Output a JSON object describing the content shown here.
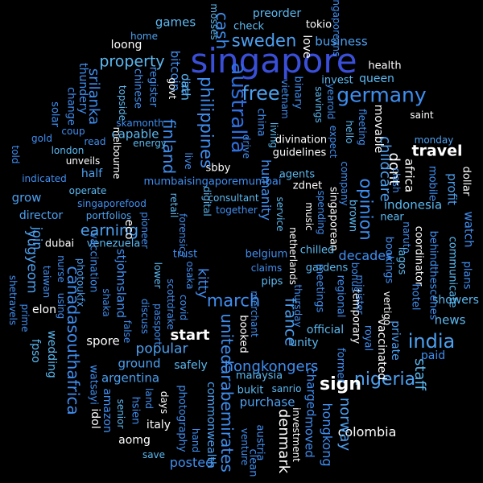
{
  "colors": {
    "background": "#000000",
    "palette": [
      "#3a4fd8",
      "#3f8ef0",
      "#4ca0f0",
      "#5bb8f0",
      "#68c6f0",
      "#2f6fe0",
      "#ffffff"
    ]
  },
  "words": [
    {
      "text": "singapore",
      "color": "#3a4fd8"
    },
    {
      "text": "germany",
      "color": "#3f8ef0"
    },
    {
      "text": "australia",
      "color": "#2f6fe0"
    },
    {
      "text": "philippines",
      "color": "#3f8ef0"
    },
    {
      "text": "unitedarabemirates",
      "color": "#3f8ef0"
    },
    {
      "text": "canadasouthafrica",
      "color": "#3f8ef0"
    },
    {
      "text": "india",
      "color": "#4ca0f0"
    },
    {
      "text": "nigeria",
      "color": "#4ca0f0"
    },
    {
      "text": "travel",
      "color": "#ffffff"
    },
    {
      "text": "start",
      "color": "#ffffff"
    },
    {
      "text": "sign",
      "color": "#ffffff"
    },
    {
      "text": "sweden",
      "color": "#4ca0f0"
    },
    {
      "text": "free",
      "color": "#4ca0f0"
    },
    {
      "text": "property",
      "color": "#5bb8f0"
    },
    {
      "text": "earning",
      "color": "#4ca0f0"
    },
    {
      "text": "march",
      "color": "#3f8ef0"
    },
    {
      "text": "france",
      "color": "#4ca0f0"
    },
    {
      "text": "finland",
      "color": "#3f8ef0"
    },
    {
      "text": "opinion",
      "color": "#3f8ef0"
    },
    {
      "text": "srilanka",
      "color": "#3f8ef0"
    },
    {
      "text": "hongkongers",
      "color": "#3f8ef0"
    },
    {
      "text": "denmark",
      "color": "#ffffff"
    },
    {
      "text": "norway",
      "color": "#4ca0f0"
    },
    {
      "text": "hongkong",
      "color": "#3f8ef0"
    },
    {
      "text": "cash",
      "color": "#3f8ef0"
    },
    {
      "text": "business",
      "color": "#4ca0f0"
    },
    {
      "text": "bitcoin",
      "color": "#3f8ef0"
    },
    {
      "text": "games",
      "color": "#5bb8f0"
    },
    {
      "text": "loong",
      "color": "#ffffff"
    },
    {
      "text": "preorder",
      "color": "#5bb8f0"
    },
    {
      "text": "tokio",
      "color": "#ffffff"
    },
    {
      "text": "check",
      "color": "#5bb8f0"
    },
    {
      "text": "love",
      "color": "#ffffff"
    },
    {
      "text": "health",
      "color": "#ffffff"
    },
    {
      "text": "queen",
      "color": "#5bb8f0"
    },
    {
      "text": "invest",
      "color": "#5bb8f0"
    },
    {
      "text": "mosses",
      "color": "#5bb8f0"
    },
    {
      "text": "home",
      "color": "#4ca0f0"
    },
    {
      "text": "oath",
      "color": "#5bb8f0"
    },
    {
      "text": "saint",
      "color": "#ffffff"
    },
    {
      "text": "monday",
      "color": "#4ca0f0"
    },
    {
      "text": "childcare",
      "color": "#4ca0f0"
    },
    {
      "text": "movable",
      "color": "#ffffff"
    },
    {
      "text": "africa",
      "color": "#ffffff"
    },
    {
      "text": "dollar",
      "color": "#ffffff"
    },
    {
      "text": "profit",
      "color": "#4ca0f0"
    },
    {
      "text": "mobile",
      "color": "#3f8ef0"
    },
    {
      "text": "dont",
      "color": "#ffffff"
    },
    {
      "text": "indonesia",
      "color": "#5bb8f0"
    },
    {
      "text": "watch",
      "color": "#3f8ef0"
    },
    {
      "text": "near",
      "color": "#5bb8f0"
    },
    {
      "text": "naruto",
      "color": "#3f8ef0"
    },
    {
      "text": "coordinator",
      "color": "#ffffff"
    },
    {
      "text": "lagos",
      "color": "#5bb8f0"
    },
    {
      "text": "bookings",
      "color": "#3f8ef0"
    },
    {
      "text": "behindthescenes",
      "color": "#3f8ef0"
    },
    {
      "text": "communicate",
      "color": "#5bb8f0"
    },
    {
      "text": "plans",
      "color": "#3f8ef0"
    },
    {
      "text": "spain",
      "color": "#4ca0f0"
    },
    {
      "text": "showers",
      "color": "#5bb8f0"
    },
    {
      "text": "news",
      "color": "#5bb8f0"
    },
    {
      "text": "paid",
      "color": "#3f8ef0"
    },
    {
      "text": "staff",
      "color": "#5bb8f0"
    },
    {
      "text": "colombia",
      "color": "#ffffff"
    },
    {
      "text": "private",
      "color": "#4ca0f0"
    },
    {
      "text": "vaccinated",
      "color": "#ffffff"
    },
    {
      "text": "temporary",
      "color": "#ffffff"
    },
    {
      "text": "royal",
      "color": "#3f8ef0"
    },
    {
      "text": "former",
      "color": "#3f8ef0"
    },
    {
      "text": "official",
      "color": "#5bb8f0"
    },
    {
      "text": "regional",
      "color": "#3f8ef0"
    },
    {
      "text": "minister",
      "color": "#3f8ef0"
    },
    {
      "text": "bonus",
      "color": "#3f8ef0"
    },
    {
      "text": "vertigo",
      "color": "#ffffff"
    },
    {
      "text": "hotel",
      "color": "#3f8ef0"
    },
    {
      "text": "unity",
      "color": "#5bb8f0"
    },
    {
      "text": "merchant",
      "color": "#3f8ef0"
    },
    {
      "text": "booked",
      "color": "#ffffff"
    },
    {
      "text": "charged",
      "color": "#3f8ef0"
    },
    {
      "text": "purchase",
      "color": "#4ca0f0"
    },
    {
      "text": "sanrio",
      "color": "#5bb8f0"
    },
    {
      "text": "malaysia",
      "color": "#5bb8f0"
    },
    {
      "text": "bukit",
      "color": "#5bb8f0"
    },
    {
      "text": "investment",
      "color": "#ffffff"
    },
    {
      "text": "moved",
      "color": "#3f8ef0"
    },
    {
      "text": "austria",
      "color": "#3f8ef0"
    },
    {
      "text": "venture",
      "color": "#3f8ef0"
    },
    {
      "text": "clean",
      "color": "#3f8ef0"
    },
    {
      "text": "commonwealth",
      "color": "#4ca0f0"
    },
    {
      "text": "posted",
      "color": "#3f8ef0"
    },
    {
      "text": "hand",
      "color": "#3f8ef0"
    },
    {
      "text": "italy",
      "color": "#ffffff"
    },
    {
      "text": "aomg",
      "color": "#ffffff"
    },
    {
      "text": "save",
      "color": "#5bb8f0"
    },
    {
      "text": "photography",
      "color": "#3f8ef0"
    },
    {
      "text": "days",
      "color": "#ffffff"
    },
    {
      "text": "hsien",
      "color": "#3f8ef0"
    },
    {
      "text": "land",
      "color": "#3f8ef0"
    },
    {
      "text": "senior",
      "color": "#5bb8f0"
    },
    {
      "text": "amazon",
      "color": "#3f8ef0"
    },
    {
      "text": "idol",
      "color": "#ffffff"
    },
    {
      "text": "watsayi",
      "color": "#3f8ef0"
    },
    {
      "text": "argentina",
      "color": "#4ca0f0"
    },
    {
      "text": "ground",
      "color": "#4ca0f0"
    },
    {
      "text": "safely",
      "color": "#5bb8f0"
    },
    {
      "text": "popular",
      "color": "#4ca0f0"
    },
    {
      "text": "spore",
      "color": "#ffffff"
    },
    {
      "text": "false",
      "color": "#3f8ef0"
    },
    {
      "text": "discuss",
      "color": "#3f8ef0"
    },
    {
      "text": "shaka",
      "color": "#3f8ef0"
    },
    {
      "text": "wedding",
      "color": "#5bb8f0"
    },
    {
      "text": "fpso",
      "color": "#5bb8f0"
    },
    {
      "text": "prime",
      "color": "#3f8ef0"
    },
    {
      "text": "shetravels",
      "color": "#3f8ef0"
    },
    {
      "text": "elon",
      "color": "#ffffff"
    },
    {
      "text": "using",
      "color": "#3f8ef0"
    },
    {
      "text": "taiwan",
      "color": "#3f8ef0"
    },
    {
      "text": "nurse",
      "color": "#3f8ef0"
    },
    {
      "text": "yugyeom",
      "color": "#4ca0f0"
    },
    {
      "text": "join",
      "color": "#4ca0f0"
    },
    {
      "text": "dubai",
      "color": "#ffffff"
    },
    {
      "text": "venezuela",
      "color": "#5bb8f0"
    },
    {
      "text": "director",
      "color": "#4ca0f0"
    },
    {
      "text": "portfolios",
      "color": "#4ca0f0"
    },
    {
      "text": "operate",
      "color": "#5bb8f0"
    },
    {
      "text": "indicated",
      "color": "#3f8ef0"
    },
    {
      "text": "half",
      "color": "#4ca0f0"
    },
    {
      "text": "grow",
      "color": "#4ca0f0"
    },
    {
      "text": "unveils",
      "color": "#ffffff"
    },
    {
      "text": "london",
      "color": "#5bb8f0"
    },
    {
      "text": "read",
      "color": "#3f8ef0"
    },
    {
      "text": "gold",
      "color": "#3f8ef0"
    },
    {
      "text": "told",
      "color": "#3f8ef0"
    },
    {
      "text": "coup",
      "color": "#3f8ef0"
    },
    {
      "text": "solar",
      "color": "#3f8ef0"
    },
    {
      "text": "change",
      "color": "#3f8ef0"
    },
    {
      "text": "thundery",
      "color": "#3f8ef0"
    },
    {
      "text": "topside",
      "color": "#5bb8f0"
    },
    {
      "text": "chinese",
      "color": "#3f8ef0"
    },
    {
      "text": "register",
      "color": "#3f8ef0"
    },
    {
      "text": "skamonth",
      "color": "#3f8ef0"
    },
    {
      "text": "capable",
      "color": "#5bb8f0"
    },
    {
      "text": "energy",
      "color": "#5bb8f0"
    },
    {
      "text": "melbourne",
      "color": "#ffffff"
    },
    {
      "text": "eco",
      "color": "#ffffff"
    },
    {
      "text": "govt",
      "color": "#ffffff"
    },
    {
      "text": "liza",
      "color": "#4ca0f0"
    },
    {
      "text": "live",
      "color": "#3f8ef0"
    },
    {
      "text": "sbby",
      "color": "#ffffff"
    },
    {
      "text": "mumbaisingaporemumbai",
      "color": "#3f8ef0"
    },
    {
      "text": "digital",
      "color": "#5bb8f0"
    },
    {
      "text": "retail",
      "color": "#5bb8f0"
    },
    {
      "text": "singaporefood",
      "color": "#3f8ef0"
    },
    {
      "text": "pioneer",
      "color": "#3f8ef0"
    },
    {
      "text": "lower",
      "color": "#5bb8f0"
    },
    {
      "text": "forensics",
      "color": "#3f8ef0"
    },
    {
      "text": "stjohnsland",
      "color": "#3f8ef0"
    },
    {
      "text": "vaccination",
      "color": "#3f8ef0"
    },
    {
      "text": "photoukfx",
      "color": "#4ca0f0"
    },
    {
      "text": "osaka",
      "color": "#3f8ef0"
    },
    {
      "text": "trust",
      "color": "#3f8ef0"
    },
    {
      "text": "kitty",
      "color": "#3f8ef0"
    },
    {
      "text": "covid",
      "color": "#3f8ef0"
    },
    {
      "text": "scottdrake",
      "color": "#3f8ef0"
    },
    {
      "text": "passport",
      "color": "#3f8ef0"
    },
    {
      "text": "together",
      "color": "#3f8ef0"
    },
    {
      "text": "consultant",
      "color": "#5bb8f0"
    },
    {
      "text": "humanity",
      "color": "#3f8ef0"
    },
    {
      "text": "belgium",
      "color": "#3f8ef0"
    },
    {
      "text": "claims",
      "color": "#3f8ef0"
    },
    {
      "text": "pips",
      "color": "#5bb8f0"
    },
    {
      "text": "service",
      "color": "#5bb8f0"
    },
    {
      "text": "netherlands",
      "color": "#ffffff"
    },
    {
      "text": "agents",
      "color": "#5bb8f0"
    },
    {
      "text": "zdnet",
      "color": "#ffffff"
    },
    {
      "text": "music",
      "color": "#ffffff"
    },
    {
      "text": "spending",
      "color": "#3f8ef0"
    },
    {
      "text": "singaporean",
      "color": "#ffffff"
    },
    {
      "text": "chilled",
      "color": "#5bb8f0"
    },
    {
      "text": "gardens",
      "color": "#5bb8f0"
    },
    {
      "text": "meetings",
      "color": "#3f8ef0"
    },
    {
      "text": "thursday",
      "color": "#3f8ef0"
    },
    {
      "text": "decades",
      "color": "#3f8ef0"
    },
    {
      "text": "brown",
      "color": "#5bb8f0"
    },
    {
      "text": "company",
      "color": "#3f8ef0"
    },
    {
      "text": "hello",
      "color": "#5bb8f0"
    },
    {
      "text": "fleeting",
      "color": "#3f8ef0"
    },
    {
      "text": "expect",
      "color": "#3f8ef0"
    },
    {
      "text": "savings",
      "color": "#5bb8f0"
    },
    {
      "text": "yearold",
      "color": "#3f8ef0"
    },
    {
      "text": "vietnam",
      "color": "#3f8ef0"
    },
    {
      "text": "binary",
      "color": "#3f8ef0"
    },
    {
      "text": "divination",
      "color": "#ffffff"
    },
    {
      "text": "guidelines",
      "color": "#ffffff"
    },
    {
      "text": "living",
      "color": "#5bb8f0"
    },
    {
      "text": "drive",
      "color": "#3f8ef0"
    },
    {
      "text": "china",
      "color": "#3f8ef0"
    },
    {
      "text": "clash",
      "color": "#3f8ef0"
    },
    {
      "text": "singaporeans",
      "color": "#3f8ef0"
    },
    {
      "text": "centre",
      "color": "#3f8ef0"
    },
    {
      "text": "setting",
      "color": "#5bb8f0"
    },
    {
      "text": "bubble",
      "color": "#5bb8f0"
    },
    {
      "text": "electrical",
      "color": "#ffffff"
    },
    {
      "text": "produce",
      "color": "#3f8ef0"
    },
    {
      "text": "xpdg",
      "color": "#ffffff"
    },
    {
      "text": "splife",
      "color": "#ffffff"
    },
    {
      "text": "sbbt",
      "color": "#ffffff"
    }
  ]
}
